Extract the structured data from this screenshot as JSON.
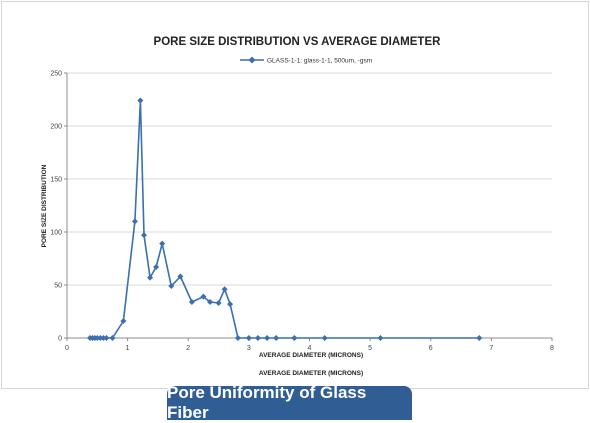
{
  "banner": {
    "text": "Pore Uniformity of Glass Fiber"
  },
  "colors": {
    "series": "#3a6fb0",
    "grid": "#d9d9d9",
    "axis": "#8c8c8c",
    "banner": "#2f5d94"
  },
  "chart_data": {
    "type": "scatter",
    "title": "PORE SIZE DISTRIBUTION VS AVERAGE DIAMETER",
    "xlabel": "AVERAGE DIAMETER (MICRONS)",
    "xlabel_secondary": "AVERAGE DIAMETER (MICRONS)",
    "ylabel": "PORE SIZE DISTRIBUTION",
    "xlim": [
      0,
      8
    ],
    "ylim": [
      0,
      250
    ],
    "x_ticks": [
      0,
      1,
      2,
      3,
      4,
      5,
      6,
      7,
      8
    ],
    "y_ticks": [
      0,
      50,
      100,
      150,
      200,
      250
    ],
    "grid": "horizontal",
    "legend_position": "top-center",
    "series": [
      {
        "name": "GLASS-1-1: glass-1-1, 500um, -gsm",
        "marker": "diamond",
        "line": true,
        "x": [
          0.38,
          0.42,
          0.46,
          0.5,
          0.55,
          0.6,
          0.65,
          0.75,
          0.93,
          1.12,
          1.21,
          1.27,
          1.37,
          1.47,
          1.57,
          1.72,
          1.87,
          2.06,
          2.25,
          2.36,
          2.5,
          2.6,
          2.69,
          2.82,
          3.0,
          3.15,
          3.3,
          3.45,
          3.75,
          4.25,
          5.17,
          6.8
        ],
        "y": [
          0,
          0,
          0,
          0,
          0,
          0,
          0,
          0,
          16,
          110,
          224,
          97,
          57,
          67,
          89,
          49,
          58,
          34,
          39,
          34,
          33,
          46,
          32,
          0,
          0,
          0,
          0,
          0,
          0,
          0,
          0,
          0
        ]
      }
    ]
  }
}
